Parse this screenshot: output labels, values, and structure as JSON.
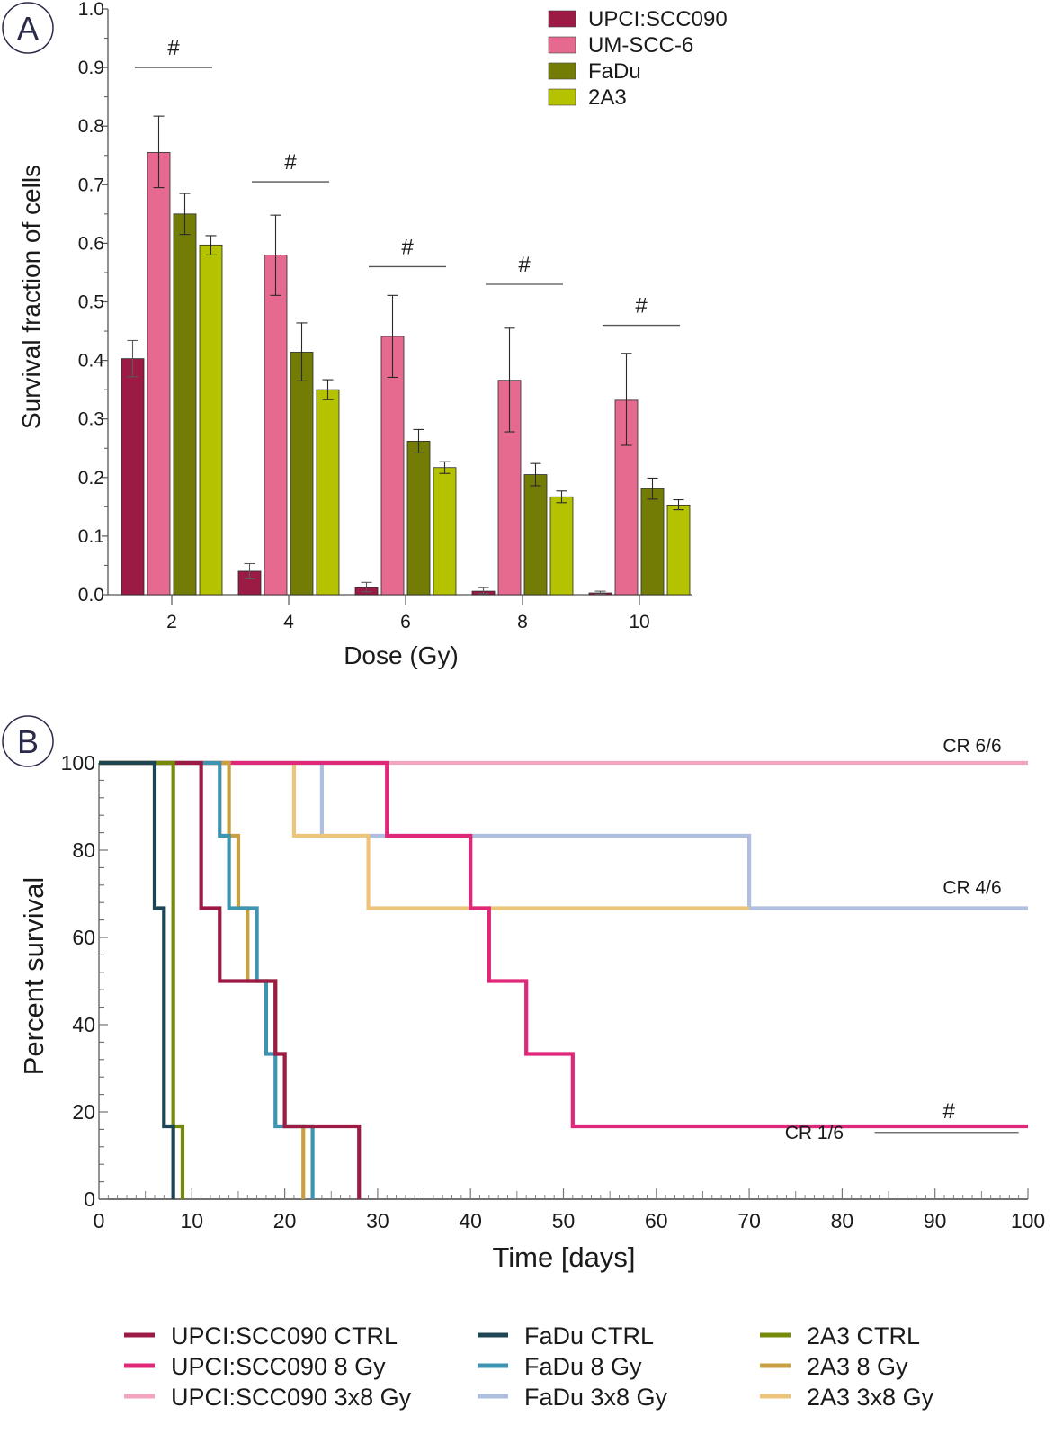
{
  "panels": {
    "a": {
      "letter": "A"
    },
    "b": {
      "letter": "B"
    }
  },
  "chart_data": [
    {
      "type": "bar",
      "panel": "A",
      "title": "",
      "xlabel": "Dose (Gy)",
      "ylabel": "Survival fraction of cells",
      "ylim": [
        0,
        1.0
      ],
      "yticks": [
        "0.0",
        "0.1",
        "0.2",
        "0.3",
        "0.4",
        "0.5",
        "0.6",
        "0.7",
        "0.8",
        "0.9",
        "1.0"
      ],
      "categories": [
        "2",
        "4",
        "6",
        "8",
        "10"
      ],
      "legend_position": "top-right",
      "series": [
        {
          "name": "UPCI:SCC090",
          "color": "#9b1b45",
          "values": [
            0.403,
            0.04,
            0.012,
            0.006,
            0.003
          ],
          "err_low": [
            0.372,
            0.027,
            0.005,
            0.002,
            0.001
          ],
          "err_high": [
            0.434,
            0.053,
            0.021,
            0.012,
            0.006
          ]
        },
        {
          "name": "UM-SCC-6",
          "color": "#e66a90",
          "values": [
            0.755,
            0.58,
            0.441,
            0.366,
            0.332
          ],
          "err_low": [
            0.695,
            0.511,
            0.371,
            0.278,
            0.255
          ],
          "err_high": [
            0.817,
            0.648,
            0.511,
            0.455,
            0.412
          ]
        },
        {
          "name": "FaDu",
          "color": "#737d06",
          "values": [
            0.65,
            0.414,
            0.262,
            0.205,
            0.181
          ],
          "err_low": [
            0.615,
            0.365,
            0.242,
            0.186,
            0.163
          ],
          "err_high": [
            0.685,
            0.464,
            0.282,
            0.224,
            0.199
          ]
        },
        {
          "name": "2A3",
          "color": "#b5c200",
          "values": [
            0.597,
            0.35,
            0.217,
            0.167,
            0.153
          ],
          "err_low": [
            0.58,
            0.333,
            0.207,
            0.157,
            0.145
          ],
          "err_high": [
            0.613,
            0.367,
            0.227,
            0.177,
            0.162
          ]
        }
      ],
      "annotations": [
        {
          "text": "#",
          "category": "2",
          "y": 0.9
        },
        {
          "text": "#",
          "category": "4",
          "y": 0.705
        },
        {
          "text": "#",
          "category": "6",
          "y": 0.56
        },
        {
          "text": "#",
          "category": "8",
          "y": 0.53
        },
        {
          "text": "#",
          "category": "10",
          "y": 0.46
        }
      ]
    },
    {
      "type": "line",
      "subtype": "kaplan-meier-step",
      "panel": "B",
      "title": "",
      "xlabel": "Time [days]",
      "ylabel": "Percent survival",
      "xlim": [
        0,
        100
      ],
      "ylim": [
        0,
        100
      ],
      "xticks": [
        "0",
        "10",
        "20",
        "30",
        "40",
        "50",
        "60",
        "70",
        "80",
        "90",
        "100"
      ],
      "yticks": [
        "0",
        "20",
        "40",
        "60",
        "80",
        "100"
      ],
      "legend_position": "bottom",
      "series": [
        {
          "name": "UPCI:SCC090 CTRL",
          "color": "#9b1b45",
          "steps": [
            [
              0,
              100
            ],
            [
              11,
              66.7
            ],
            [
              13,
              50
            ],
            [
              19,
              33.3
            ],
            [
              20,
              16.7
            ],
            [
              28,
              0
            ]
          ],
          "end": 28
        },
        {
          "name": "UPCI:SCC090 8 Gy",
          "color": "#e0287a",
          "steps": [
            [
              0,
              100
            ],
            [
              31,
              83.3
            ],
            [
              40,
              66.7
            ],
            [
              42,
              50
            ],
            [
              46,
              33.3
            ],
            [
              51,
              16.7
            ]
          ],
          "end": 100
        },
        {
          "name": "UPCI:SCC090 3x8 Gy",
          "color": "#f2a6bd",
          "steps": [
            [
              0,
              100
            ]
          ],
          "end": 100
        },
        {
          "name": "FaDu CTRL",
          "color": "#1e4554",
          "steps": [
            [
              0,
              100
            ],
            [
              6,
              66.7
            ],
            [
              7,
              16.7
            ],
            [
              8,
              0
            ]
          ],
          "end": 8
        },
        {
          "name": "FaDu 8 Gy",
          "color": "#3e93b0",
          "steps": [
            [
              0,
              100
            ],
            [
              13,
              83.3
            ],
            [
              14,
              66.7
            ],
            [
              17,
              50
            ],
            [
              18,
              33.3
            ],
            [
              19,
              16.7
            ],
            [
              23,
              0
            ]
          ],
          "end": 23
        },
        {
          "name": "FaDu 3x8 Gy",
          "color": "#aebfe0",
          "steps": [
            [
              0,
              100
            ],
            [
              24,
              83.3
            ],
            [
              70,
              66.7
            ]
          ],
          "end": 100
        },
        {
          "name": "2A3 CTRL",
          "color": "#768a0a",
          "steps": [
            [
              0,
              100
            ],
            [
              8,
              16.7
            ],
            [
              9,
              0
            ]
          ],
          "end": 9
        },
        {
          "name": "2A3 8 Gy",
          "color": "#c9a040",
          "steps": [
            [
              0,
              100
            ],
            [
              14,
              83.3
            ],
            [
              15,
              66.7
            ],
            [
              16,
              50
            ],
            [
              19,
              33.3
            ],
            [
              20,
              16.7
            ],
            [
              22,
              0
            ]
          ],
          "end": 22
        },
        {
          "name": "2A3 3x8 Gy",
          "color": "#ecc57a",
          "steps": [
            [
              0,
              100
            ],
            [
              21,
              83.3
            ],
            [
              29,
              66.7
            ]
          ],
          "end": 70
        }
      ],
      "annotations": [
        {
          "text": "CR 6/6",
          "x": 94,
          "y": 100
        },
        {
          "text": "CR 4/6",
          "x": 94,
          "y": 66.7
        },
        {
          "text": "CR 1/6",
          "x": 77,
          "y": 16.7
        },
        {
          "text": "#",
          "x": 91,
          "y": 21
        }
      ]
    }
  ]
}
